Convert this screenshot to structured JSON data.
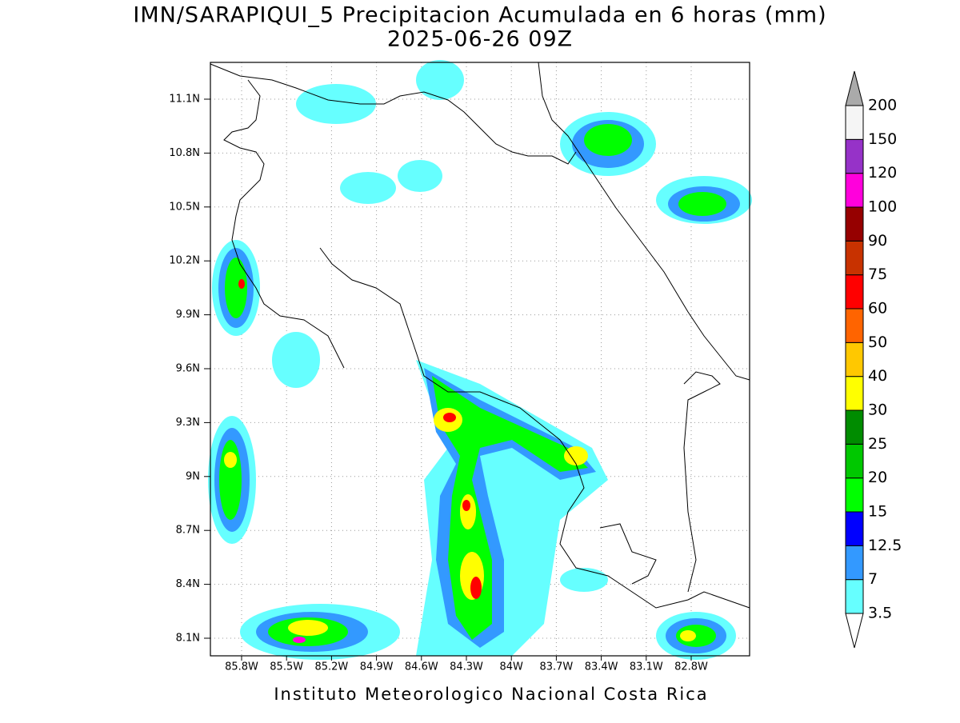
{
  "map": {
    "title": "IMN/SARAPIQUI_5 Precipitacion Acumulada en 6 horas (mm)",
    "subtitle": "2025-06-26 09Z",
    "lat_labels": [
      "11.1N",
      "10.8N",
      "10.5N",
      "10.2N",
      "9.9N",
      "9.6N",
      "9.3N",
      "9N",
      "8.7N",
      "8.4N",
      "8.1N"
    ],
    "lon_labels": [
      "85.8W",
      "85.5W",
      "85.2W",
      "84.9W",
      "84.6W",
      "84.3W",
      "84W",
      "83.7W",
      "83.4W",
      "83.1W",
      "82.8W"
    ],
    "colorbar": {
      "levels": [
        3.5,
        7,
        12.5,
        15,
        20,
        25,
        30,
        40,
        50,
        60,
        75,
        90,
        100,
        120,
        150,
        200
      ],
      "colors": [
        "#ffffff",
        "#66ffff",
        "#3399ff",
        "#0000ff",
        "#00ff00",
        "#00c800",
        "#008c00",
        "#ffff00",
        "#ffc800",
        "#ff6400",
        "#ff0000",
        "#c83200",
        "#960000",
        "#ff00dc",
        "#9632c8",
        "#f5f5f5",
        "#aaaaaa"
      ]
    },
    "credit": "Instituto Meteorologico Nacional Costa Rica"
  }
}
